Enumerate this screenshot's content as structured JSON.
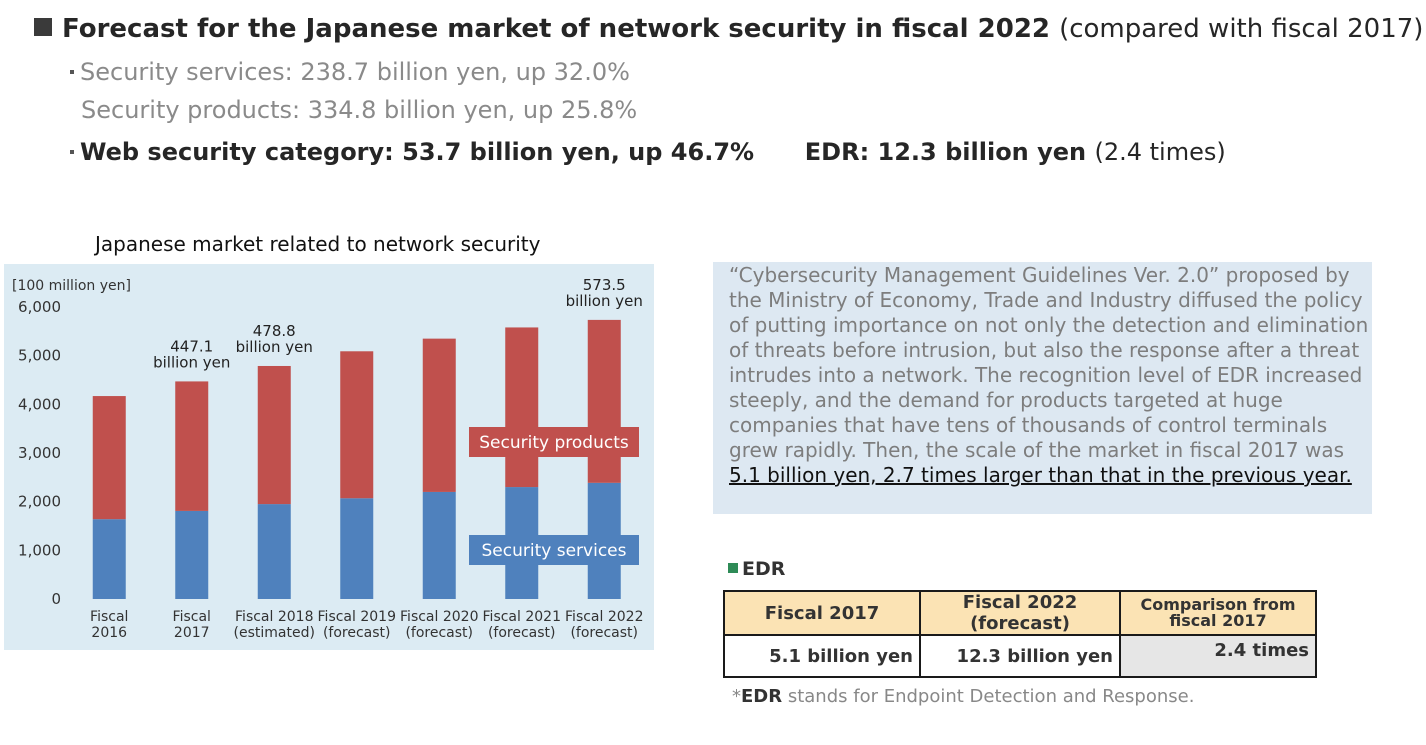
{
  "headline": {
    "main": "Forecast for the Japanese market of network security in fiscal 2022",
    "paren": "(compared with fiscal 2017)"
  },
  "bullets": {
    "services": "Security services: 238.7 billion yen, up 32.0%",
    "products": "Security products: 334.8 billion yen, up 25.8%",
    "web": "Web security category: 53.7 billion yen, up 46.7%",
    "edr_main": "EDR: 12.3 billion yen",
    "edr_paren": "(2.4 times)"
  },
  "chart_data": {
    "type": "bar",
    "stacked": true,
    "title": "Japanese market related to network security",
    "ylabel": "[100 million yen]",
    "ylim": [
      0,
      6000
    ],
    "yticks": [
      "0",
      "1,000",
      "2,000",
      "3,000",
      "4,000",
      "5,000",
      "6,000"
    ],
    "categories": [
      [
        "Fiscal",
        "2016"
      ],
      [
        "Fiscal",
        "2017"
      ],
      [
        "Fiscal 2018",
        "(estimated)"
      ],
      [
        "Fiscal 2019",
        "(forecast)"
      ],
      [
        "Fiscal 2020",
        "(forecast)"
      ],
      [
        "Fiscal 2021",
        "(forecast)"
      ],
      [
        "Fiscal 2022",
        "(forecast)"
      ]
    ],
    "series": [
      {
        "name": "Security services",
        "color": "#4f81bd",
        "values": [
          1640,
          1810,
          1950,
          2070,
          2200,
          2300,
          2387
        ]
      },
      {
        "name": "Security products",
        "color": "#c0504d",
        "values": [
          2530,
          2661,
          2838,
          3020,
          3150,
          3280,
          3348
        ]
      }
    ],
    "annotations": [
      {
        "index": 1,
        "lines": [
          "447.1",
          "billion yen"
        ]
      },
      {
        "index": 2,
        "lines": [
          "478.8",
          "billion yen"
        ]
      },
      {
        "index": 6,
        "lines": [
          "573.5",
          "billion yen"
        ]
      }
    ],
    "grid": false
  },
  "note": {
    "text": "“Cybersecurity Management Guidelines Ver. 2.0” proposed by the Ministry of Economy, Trade and Industry diffused the policy of putting importance on not only the detection and elimination of threats before intrusion, but also the response after a threat intrudes into a network. The recognition level of EDR increased steeply, and the demand for products targeted at huge companies that have tens of thousands of control terminals grew rapidly. Then, the scale of the market in fiscal 2017 was ",
    "highlight": "5.1 billion yen, 2.7 times larger than that in the previous year."
  },
  "edr": {
    "label": "EDR",
    "headers": [
      "Fiscal 2017",
      "Fiscal 2022 (forecast)",
      "Comparison from fiscal 2017"
    ],
    "values": [
      "5.1 billion yen",
      "12.3 billion yen",
      "2.4 times"
    ],
    "colors": {
      "header_bg": "#fbe3b4",
      "comparison_bg": "#e6e6e6"
    }
  },
  "footnote": {
    "abbr": "EDR",
    "text": " stands for Endpoint Detection and Response."
  }
}
